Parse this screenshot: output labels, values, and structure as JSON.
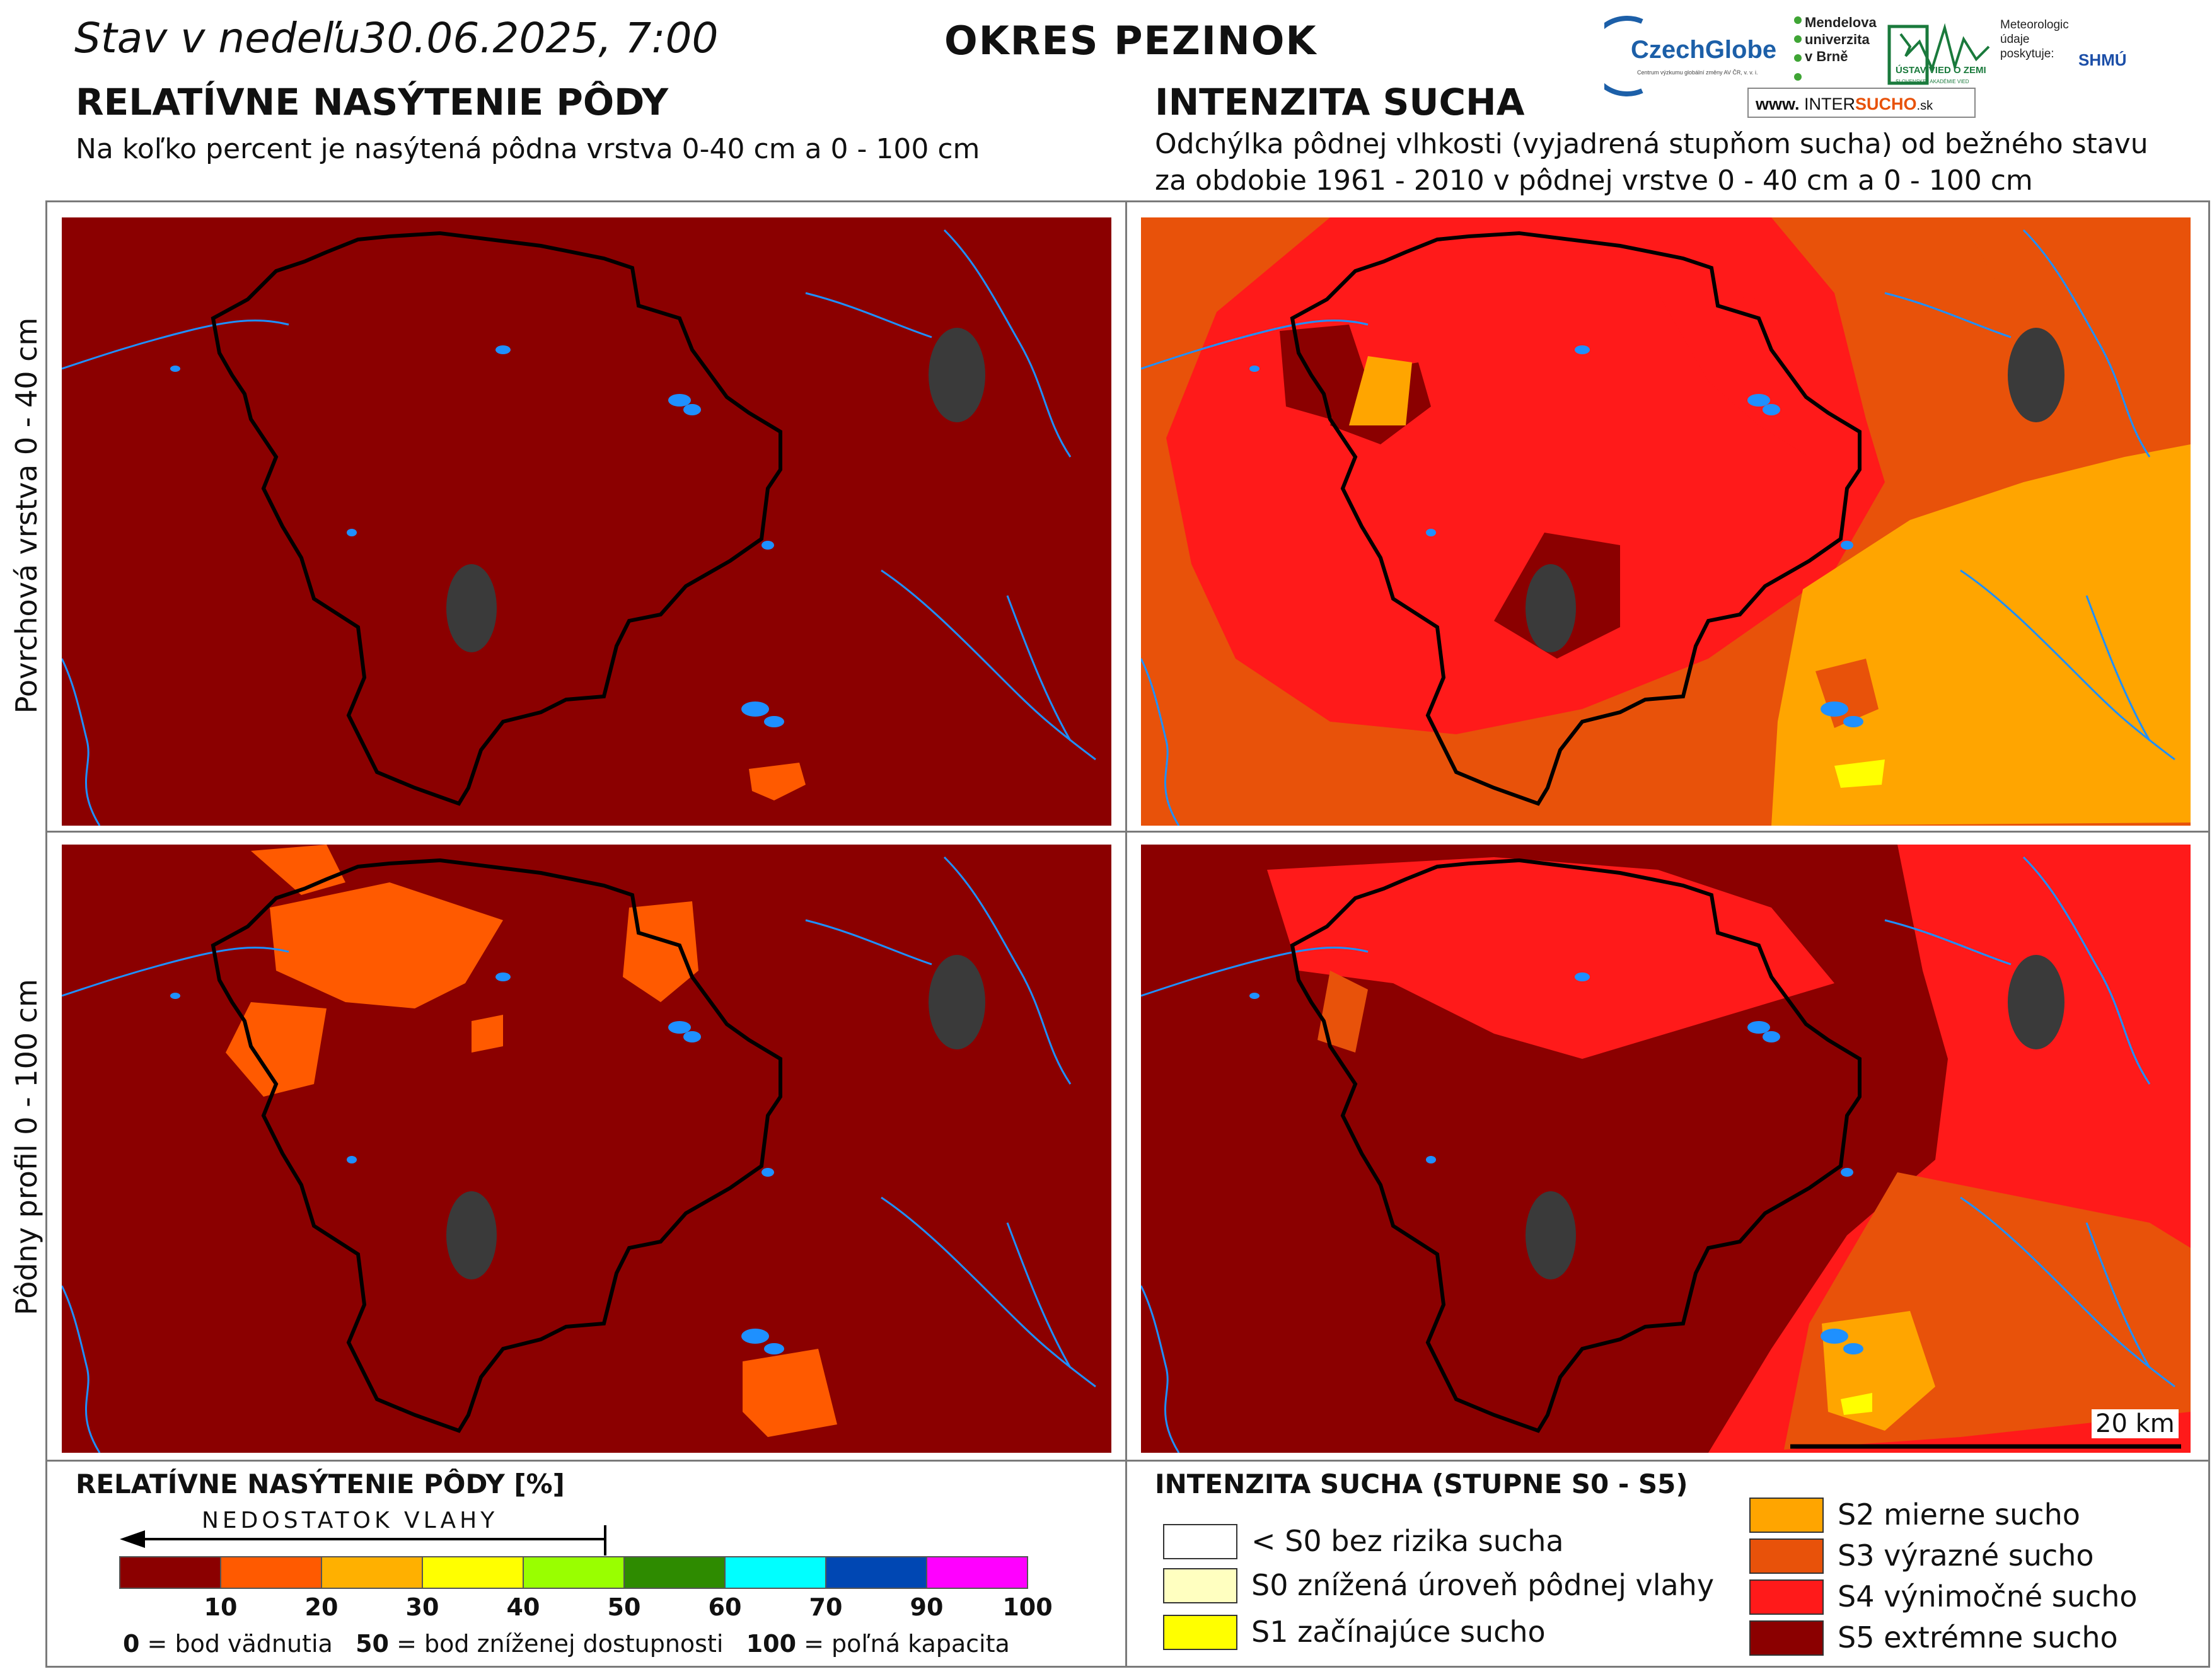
{
  "header": {
    "date_prefix": "Stav v nedeľu",
    "date": "30.06.2025, 7:00",
    "district": "OKRES PEZINOK"
  },
  "logos": {
    "czechglobe": "CzechGlobe",
    "czechglobe_sub": "Centrum výzkumu globální změny AV ČR, v. v. i.",
    "mendel": "Mendelova univerzita v Brně",
    "usvz": "ÚSTAV VIED O ZEMI",
    "usvz_sub": "SLOVENSKEJ AKADÉMIE VIED",
    "meteo": "Meteorologické údaje poskytuje:",
    "shmu": "SHMÚ",
    "intersucho_www": "www.",
    "intersucho_a": "INTER",
    "intersucho_b": "SUCHO",
    "intersucho_sk": ".sk"
  },
  "left_section": {
    "title": "RELATÍVNE NASÝTENIE PÔDY",
    "subtitle": "Na koľko percent je nasýtená pôdna vrstva 0-40 cm a 0 - 100 cm"
  },
  "right_section": {
    "title": "INTENZITA SUCHA",
    "subtitle_line1": "Odchýlka pôdnej vlhkosti (vyjadrená stupňom sucha) od bežného stavu",
    "subtitle_line2": "za obdobie 1961 - 2010 v pôdnej vrstve 0 - 40 cm a 0 - 100 cm"
  },
  "rows": {
    "top_label": "Povrchová vrstva 0 - 40 cm",
    "bottom_label": "Pôdny profil 0 - 100 cm"
  },
  "scale_bar": {
    "label": "20 km"
  },
  "colors": {
    "s5": "#8b0000",
    "s4": "#ff1a1a",
    "s3": "#e8520a",
    "s2": "#ffa500",
    "s1": "#ffff00",
    "s0": "#ffffc0",
    "water": "#1e90ff",
    "town": "#3a3a3a"
  },
  "saturation_legend": {
    "title": "RELATÍVNE NASÝTENIE PÔDY [%]",
    "arrow_label": "NEDOSTATOK VLAHY",
    "bins": [
      {
        "from": 0,
        "to": 10,
        "color": "#8b0000"
      },
      {
        "from": 10,
        "to": 20,
        "color": "#ff5a00"
      },
      {
        "from": 20,
        "to": 30,
        "color": "#ffb000"
      },
      {
        "from": 30,
        "to": 40,
        "color": "#ffff00"
      },
      {
        "from": 40,
        "to": 50,
        "color": "#99ff00"
      },
      {
        "from": 50,
        "to": 60,
        "color": "#2e8b00"
      },
      {
        "from": 60,
        "to": 70,
        "color": "#00ffff"
      },
      {
        "from": 70,
        "to": 90,
        "color": "#0047b3"
      },
      {
        "from": 90,
        "to": 100,
        "color": "#ff00ff"
      }
    ],
    "ticks": [
      "10",
      "20",
      "30",
      "40",
      "50",
      "60",
      "70",
      "90",
      "100"
    ],
    "note_0_key": "0",
    "note_0_text": "= bod vädnutia",
    "note_50_key": "50",
    "note_50_text": "= bod zníženej dostupnosti",
    "note_100_key": "100",
    "note_100_text": "= poľná kapacita"
  },
  "drought_legend": {
    "title": "INTENZITA SUCHA (STUPNE S0 - S5)",
    "items_left": [
      {
        "label": "< S0 bez rizika sucha",
        "color": "#ffffff"
      },
      {
        "label": "S0 znížená úroveň pôdnej vlahy",
        "color": "#ffffc0"
      },
      {
        "label": "S1 začínajúce sucho",
        "color": "#ffff00"
      }
    ],
    "items_right": [
      {
        "label": "S2 mierne sucho",
        "color": "#ffa500"
      },
      {
        "label": "S3 výrazné sucho",
        "color": "#e8520a"
      },
      {
        "label": "S4 výnimočné sucho",
        "color": "#ff1a1a"
      },
      {
        "label": "S5 extrémne sucho",
        "color": "#8b0000"
      }
    ]
  }
}
